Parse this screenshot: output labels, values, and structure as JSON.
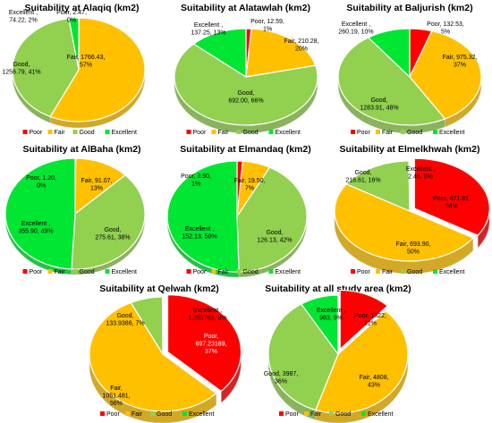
{
  "colors": {
    "Poor": "#ff0000",
    "Fair": "#ffc000",
    "Good": "#92d050",
    "Excellent": "#00e632"
  },
  "chart_data": [
    {
      "type": "pie",
      "title": "Suitability at  Alaqiq (km2)",
      "slices": [
        {
          "name": "Poor",
          "value": 2.47,
          "label1": "Poor, 2.47,",
          "label2": "0%"
        },
        {
          "name": "Fair",
          "value": 1766.43,
          "label1": "Fair, 1766.43,",
          "label2": "57%"
        },
        {
          "name": "Good",
          "value": 1256.79,
          "label1": "Good,",
          "label2": "1256.79, 41%"
        },
        {
          "name": "Excellent",
          "value": 74.22,
          "label1": "Excellent ,",
          "label2": "74.22, 2%"
        }
      ],
      "legend": [
        "Poor",
        "Fair",
        "Good",
        "Excellent"
      ]
    },
    {
      "type": "pie",
      "title": "Suitability at  Alatawlah (km2)",
      "slices": [
        {
          "name": "Poor",
          "value": 12.59,
          "label1": "Poor, 12.59,",
          "label2": "1%"
        },
        {
          "name": "Fair",
          "value": 210.28,
          "label1": "Fair, 210.28,",
          "label2": "20%"
        },
        {
          "name": "Good",
          "value": 692.0,
          "label1": "Good,",
          "label2": "692.00, 66%"
        },
        {
          "name": "Excellent",
          "value": 137.25,
          "label1": "Excellent ,",
          "label2": "137.25, 13%"
        }
      ],
      "legend": [
        "Poor",
        "Fair",
        "Good",
        "Excellent"
      ]
    },
    {
      "type": "pie",
      "title": "Suitability at  Baljurish (km2)",
      "slices": [
        {
          "name": "Poor",
          "value": 132.53,
          "label1": "Poor, 132.53,",
          "label2": "5%"
        },
        {
          "name": "Fair",
          "value": 975.32,
          "label1": "Fair, 975.32,",
          "label2": "37%"
        },
        {
          "name": "Good",
          "value": 1283.91,
          "label1": "Good,",
          "label2": "1283.91, 48%"
        },
        {
          "name": "Excellent",
          "value": 260.19,
          "label1": "Excellent ,",
          "label2": "260.19, 10%"
        }
      ],
      "legend": [
        "Poor",
        "Fair",
        "Good",
        "Excellent"
      ]
    },
    {
      "type": "pie",
      "title": "Suitability at  AlBaha (km2)",
      "slices": [
        {
          "name": "Poor",
          "value": 1.2,
          "label1": "Poor, 1.20,",
          "label2": "0%"
        },
        {
          "name": "Fair",
          "value": 91.07,
          "label1": "Fair, 91.07,",
          "label2": "13%"
        },
        {
          "name": "Good",
          "value": 275.61,
          "label1": "Good,",
          "label2": "275.61, 38%"
        },
        {
          "name": "Excellent",
          "value": 355.9,
          "label1": "Excellent ,",
          "label2": "355.90, 49%"
        }
      ],
      "legend": [
        "Poor",
        "Fair",
        "Good",
        "Excellent"
      ]
    },
    {
      "type": "pie",
      "title": "Suitability at  Elmandaq (km2)",
      "slices": [
        {
          "name": "Poor",
          "value": 3.9,
          "label1": "Poor, 3.90,",
          "label2": "1%"
        },
        {
          "name": "Fair",
          "value": 19.5,
          "label1": "Fair, 19.50,",
          "label2": "7%"
        },
        {
          "name": "Good",
          "value": 126.13,
          "label1": "Good,",
          "label2": "126.13, 42%"
        },
        {
          "name": "Excellent",
          "value": 152.13,
          "label1": "Excellent ,",
          "label2": "152.13, 50%"
        }
      ],
      "legend": [
        "Poor",
        "Fair",
        "Good",
        "Excellent"
      ]
    },
    {
      "type": "pie",
      "title": "Suitability at  Elmelkhwah (km2)",
      "slices": [
        {
          "name": "Poor",
          "value": 471.81,
          "label1": "Poor, 471.81,",
          "label2": "34%"
        },
        {
          "name": "Fair",
          "value": 693.9,
          "label1": "Fair, 693.90,",
          "label2": "50%"
        },
        {
          "name": "Good",
          "value": 218.61,
          "label1": "Good,",
          "label2": "218.61, 16%"
        },
        {
          "name": "Excellent",
          "value": 2.46,
          "label1": "Excellent ,",
          "label2": "2.46, 0%"
        }
      ],
      "legend": [
        "Poor",
        "Fair",
        "Good",
        "Excellent"
      ]
    },
    {
      "type": "pie",
      "title": "Suitability at Qelwah (km2)",
      "slices": [
        {
          "name": "Poor",
          "value": 697.23189,
          "label1": "Poor,",
          "label2": "697.23189,",
          "label3": "37%"
        },
        {
          "name": "Fair",
          "value": 1051.481,
          "label1": "Fair,",
          "label2": "1051.481,",
          "label3": "56%"
        },
        {
          "name": "Good",
          "value": 133.9386,
          "label1": "Good,",
          "label2": "133.9386, 7%"
        },
        {
          "name": "Excellent",
          "value": 1.251763,
          "label1": "Excellent ,",
          "label2": "1.251763, 0%"
        }
      ],
      "legend": [
        "Poor",
        "Fair",
        "Good",
        "Excellent"
      ]
    },
    {
      "type": "pie",
      "title": "Suitability at all study area (km2)",
      "slices": [
        {
          "name": "Poor",
          "value": 1322,
          "label1": "Poor, 1322,",
          "label2": "12%"
        },
        {
          "name": "Fair",
          "value": 4808,
          "label1": "Fair, 4808,",
          "label2": "43%"
        },
        {
          "name": "Good",
          "value": 3987,
          "label1": "Good, 3987,",
          "label2": "36%"
        },
        {
          "name": "Excellent",
          "value": 983,
          "label1": "Excellent ,",
          "label2": "983, 9%"
        }
      ],
      "legend": [
        "Poor",
        "Fair",
        "Good",
        "Excellent"
      ]
    }
  ]
}
